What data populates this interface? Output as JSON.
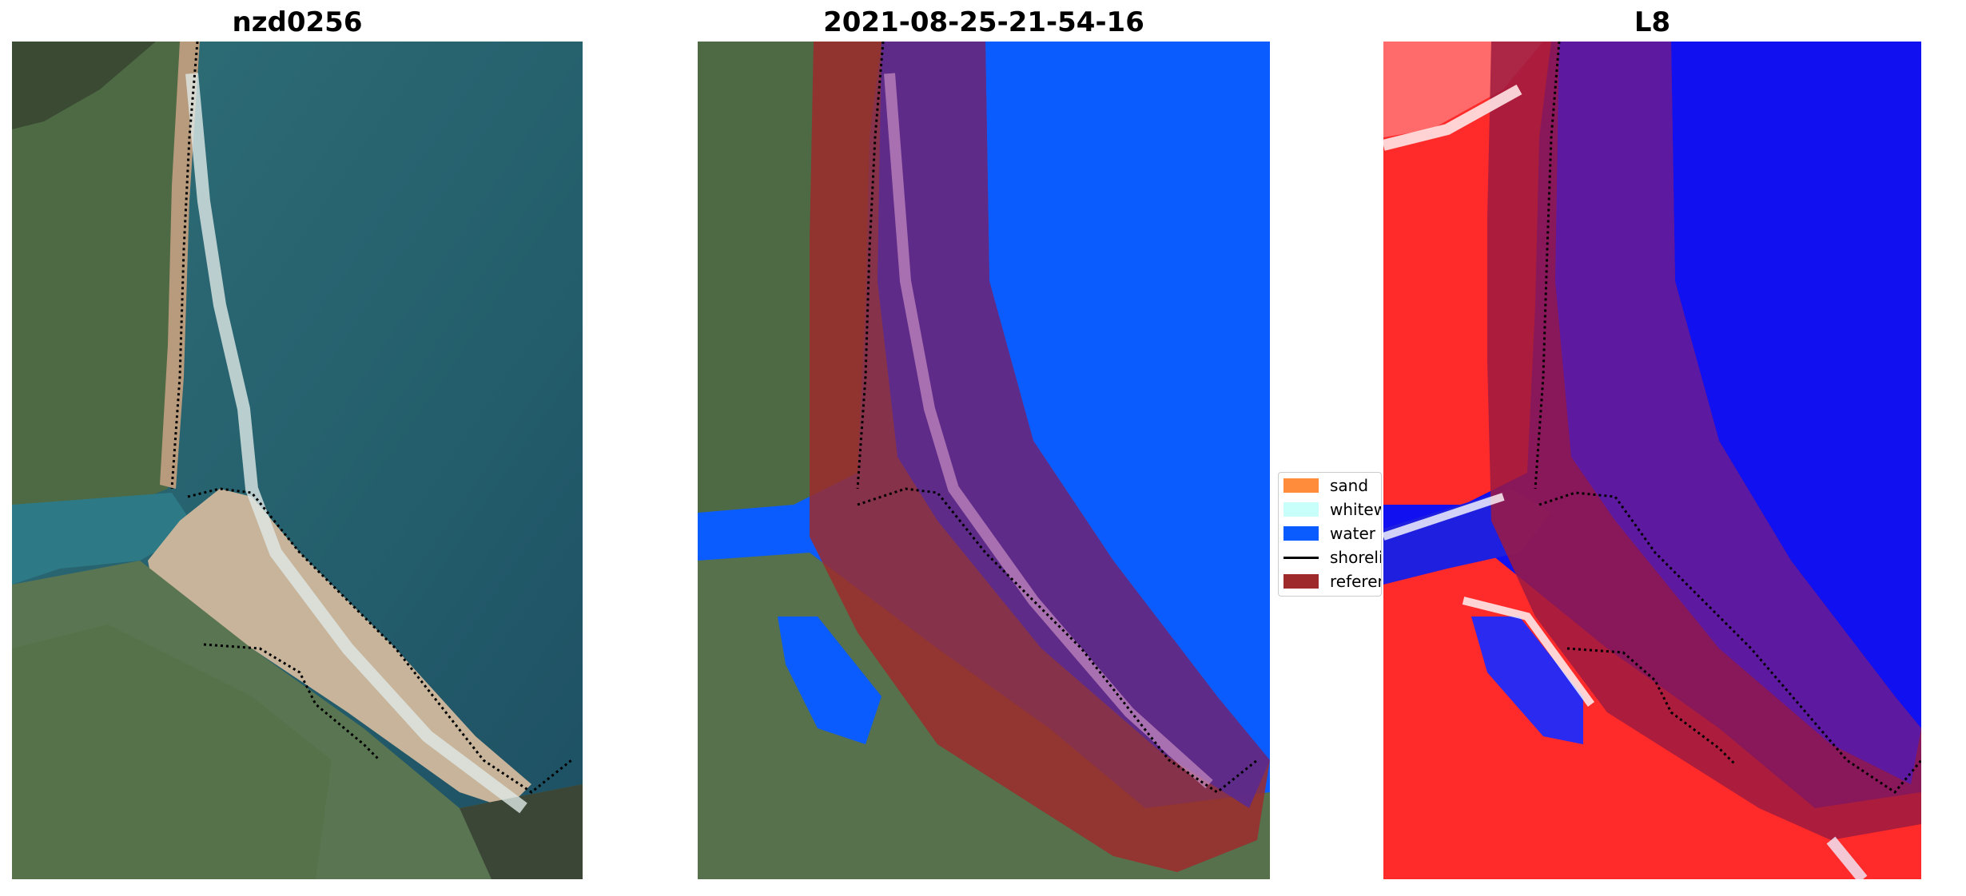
{
  "panels": [
    {
      "title": "nzd0256"
    },
    {
      "title": "2021-08-25-21-54-16"
    },
    {
      "title": "L8"
    }
  ],
  "legend": {
    "items": [
      {
        "label": "sand",
        "color": "#ff8c3a"
      },
      {
        "label": "whitewater",
        "color": "#c9fffb"
      },
      {
        "label": "water",
        "color": "#0a5cff"
      },
      {
        "label": "shoreline",
        "color": "#000000"
      },
      {
        "label": "reference",
        "color": "#9e2a2b"
      }
    ]
  },
  "colors": {
    "ocean": "#1f5a6a",
    "land": "#4f6b4a",
    "classified_water": "#0a5cff",
    "reference_buffer": "#9e2a2b",
    "index_land": "#ff2020",
    "index_water": "#1010f0"
  }
}
